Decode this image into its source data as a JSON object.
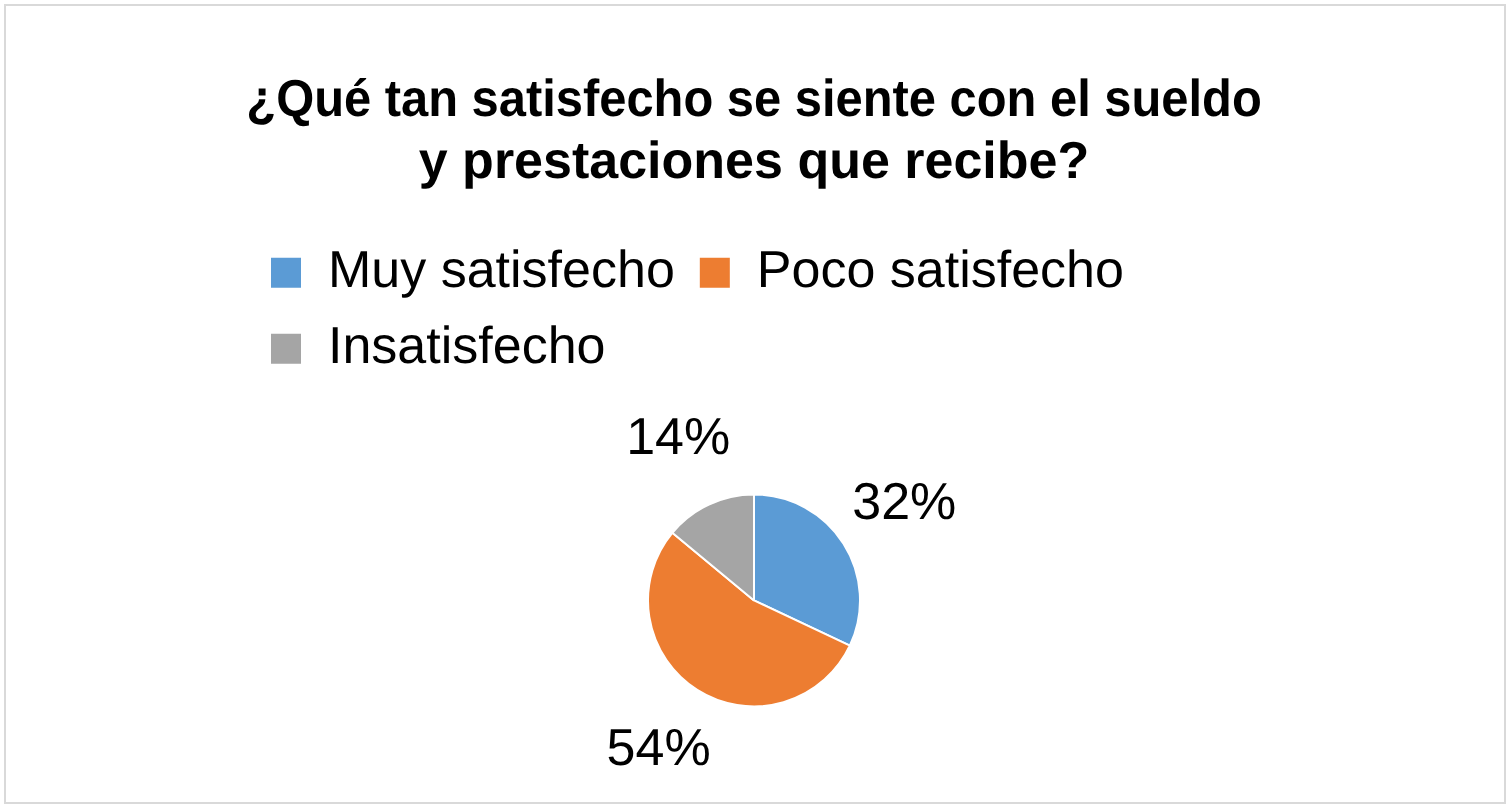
{
  "chart_data": {
    "type": "pie",
    "title": "¿Qué tan satisfecho se siente con el sueldo y prestaciones que recibe?",
    "categories": [
      "Muy satisfecho",
      "Poco satisfecho",
      "Insatisfecho"
    ],
    "values": [
      32,
      54,
      14
    ],
    "colors": [
      "#5b9bd5",
      "#ed7d31",
      "#a5a5a5"
    ],
    "value_labels": [
      "32%",
      "54%",
      "14%"
    ],
    "legend": "top"
  }
}
